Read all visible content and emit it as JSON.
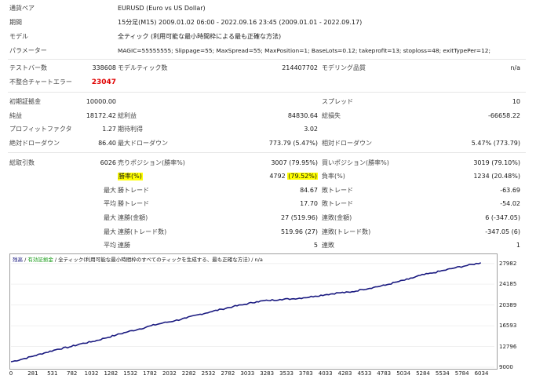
{
  "header": {
    "symbol_label": "通貨ペア",
    "symbol_value": "EURUSD (Euro vs US Dollar)",
    "period_label": "期間",
    "period_value": "15分足(M15) 2009.01.02 06:00 - 2022.09.16 23:45 (2009.01.01 - 2022.09.17)",
    "model_label": "モデル",
    "model_value": "全ティック (利用可能な最小時間枠による最も正確な方法)",
    "params_label": "パラメーター",
    "params_value": "MAGIC=55555555; Slippage=55; MaxSpread=55; MaxPosition=1; BaseLots=0.12; takeprofit=13; stoploss=48; exitTypePer=12;"
  },
  "stats": {
    "bars_label": "テストバー数",
    "bars_value": "338608",
    "ticks_label": "モデルティック数",
    "ticks_value": "214407702",
    "quality_label": "モデリング品質",
    "quality_value": "n/a",
    "mismatch_label": "不整合チャートエラー",
    "mismatch_value": "23047",
    "deposit_label": "初期証拠金",
    "deposit_value": "10000.00",
    "spread_label": "スプレッド",
    "spread_value": "10",
    "net_label": "純益",
    "net_value": "18172.42",
    "gross_profit_label": "総利益",
    "gross_profit_value": "84830.64",
    "gross_loss_label": "総損失",
    "gross_loss_value": "-66658.22",
    "pf_label": "プロフィットファクタ",
    "pf_value": "1.27",
    "payoff_label": "期待利得",
    "payoff_value": "3.02",
    "abs_dd_label": "絶対ドローダウン",
    "abs_dd_value": "86.40",
    "max_dd_label": "最大ドローダウン",
    "max_dd_value": "773.79 (5.47%)",
    "rel_dd_label": "相対ドローダウン",
    "rel_dd_value": "5.47% (773.79)",
    "trades_label": "総取引数",
    "trades_value": "6026",
    "short_label": "売りポジション(勝率%)",
    "short_value": "3007 (79.95%)",
    "long_label": "買いポジション(勝率%)",
    "long_value": "3019 (79.10%)",
    "winrate_label": "勝率(%)",
    "winrate_value": "4792 (79.52%)",
    "winrate_count": "4792",
    "winrate_pct": "(79.52%)",
    "lossrate_label": "負率(%)",
    "lossrate_value": "1234 (20.48%)",
    "largest_label": "最大",
    "avg_label": "平均",
    "win_trade_label": "勝トレード",
    "loss_trade_label": "敗トレード",
    "largest_win_value": "84.67",
    "largest_loss_value": "-63.69",
    "avg_win_value": "17.70",
    "avg_loss_value": "-54.02",
    "max_consec_win_amt_label": "連勝(金額)",
    "max_consec_win_amt_value": "27 (519.96)",
    "max_consec_loss_amt_label": "連敗(金額)",
    "max_consec_loss_amt_value": "6 (-347.05)",
    "max_consec_win_cnt_label": "連勝(トレード数)",
    "max_consec_win_cnt_value": "519.96 (27)",
    "max_consec_loss_cnt_label": "連敗(トレード数)",
    "max_consec_loss_cnt_value": "-347.05 (6)",
    "avg_consec_win_label": "連勝",
    "avg_consec_win_value": "5",
    "avg_consec_loss_label": "連敗",
    "avg_consec_loss_value": "1"
  },
  "graph": {
    "legend_balance": "残高",
    "legend_sep": " / ",
    "legend_equity": "有効証拠金",
    "legend_rest": " / 全ティック(利用可能な最小時間枠のすべてのティックを生成する、最も正確な方法) / n/a",
    "line_color": "#1a1a80",
    "y_ticks": [
      "27982",
      "24185",
      "20389",
      "16593",
      "12796",
      "9000"
    ],
    "x_ticks": [
      "0",
      "281",
      "531",
      "782",
      "1032",
      "1282",
      "1532",
      "1782",
      "2032",
      "2282",
      "2532",
      "2782",
      "3033",
      "3283",
      "3533",
      "3783",
      "4033",
      "4283",
      "4533",
      "4783",
      "5034",
      "5284",
      "5534",
      "5784",
      "6034"
    ]
  },
  "chart_data": {
    "type": "line",
    "ylim": [
      9000,
      29000
    ],
    "xlim": [
      0,
      6200
    ],
    "x_ticks": [
      0,
      281,
      531,
      782,
      1032,
      1282,
      1532,
      1782,
      2032,
      2282,
      2532,
      2782,
      3033,
      3283,
      3533,
      3783,
      4033,
      4283,
      4533,
      4783,
      5034,
      5284,
      5534,
      5784,
      6034
    ],
    "y_ticks": [
      27982,
      24185,
      20389,
      16593,
      12796,
      9000
    ],
    "series": [
      {
        "name": "残高",
        "x": [
          0,
          150,
          300,
          450,
          600,
          750,
          900,
          1050,
          1200,
          1350,
          1500,
          1650,
          1800,
          1950,
          2100,
          2250,
          2400,
          2550,
          2700,
          2850,
          3000,
          3150,
          3300,
          3450,
          3600,
          3750,
          3900,
          4050,
          4200,
          4350,
          4500,
          4650,
          4800,
          4950,
          5100,
          5250,
          5400,
          5550,
          5700,
          5850,
          6026
        ],
        "y": [
          10000,
          10500,
          11100,
          11700,
          12300,
          12700,
          13300,
          13700,
          14300,
          14900,
          15500,
          16000,
          16600,
          17100,
          17500,
          18000,
          18600,
          19100,
          19600,
          20100,
          20500,
          21000,
          21200,
          21400,
          21500,
          21700,
          22000,
          22300,
          22600,
          22700,
          23200,
          23600,
          24000,
          24600,
          25100,
          25800,
          26200,
          26700,
          27200,
          27600,
          28100
        ]
      }
    ]
  }
}
